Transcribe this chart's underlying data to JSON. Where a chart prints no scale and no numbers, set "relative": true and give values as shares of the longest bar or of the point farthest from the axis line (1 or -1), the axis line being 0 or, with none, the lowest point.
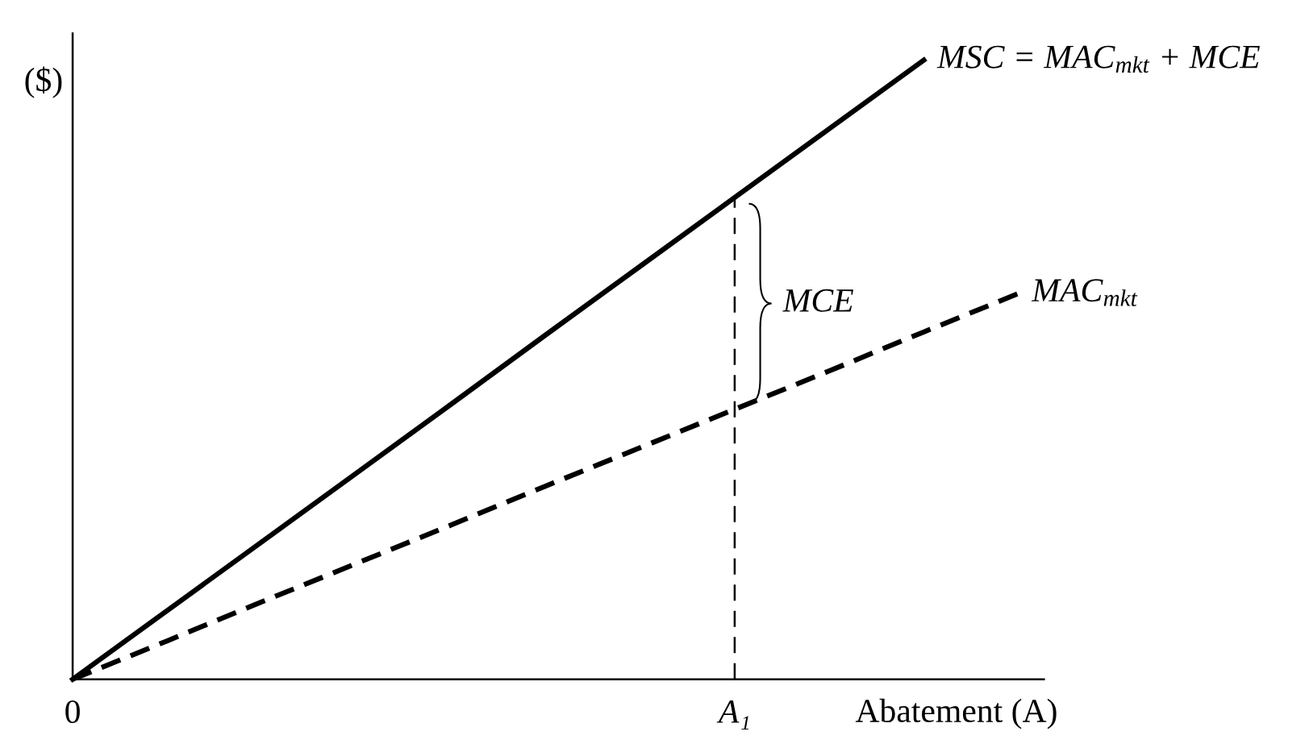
{
  "chart_data": {
    "type": "line",
    "relative": true,
    "ylabel": "($)",
    "xlabel": "Abatement (A)",
    "categories": [
      "0",
      null,
      null,
      null,
      null,
      null,
      null,
      "A₁",
      null,
      null,
      null
    ],
    "series": [
      {
        "name": "MSC = MAC$_{mkt}$ + MCE",
        "color": "#000000",
        "line_style": "solid",
        "values": [
          0,
          0.111,
          0.222,
          0.333,
          0.444,
          0.556,
          0.667,
          0.778,
          0.889,
          1.0,
          null
        ]
      },
      {
        "name": "MAC$_{mkt}$",
        "color": "#000000",
        "line_style": "dashed",
        "values": [
          0,
          0.062,
          0.125,
          0.187,
          0.249,
          0.312,
          0.374,
          0.436,
          0.498,
          0.561,
          0.623
        ]
      }
    ],
    "ref_lines": [
      {
        "axis": "x",
        "value": "A₁",
        "color": "#000000",
        "line_style": "dashed"
      }
    ],
    "annotations": [
      {
        "text": "MCE",
        "x": "A₁"
      }
    ],
    "grid": false,
    "legend": false,
    "marker": "none"
  }
}
